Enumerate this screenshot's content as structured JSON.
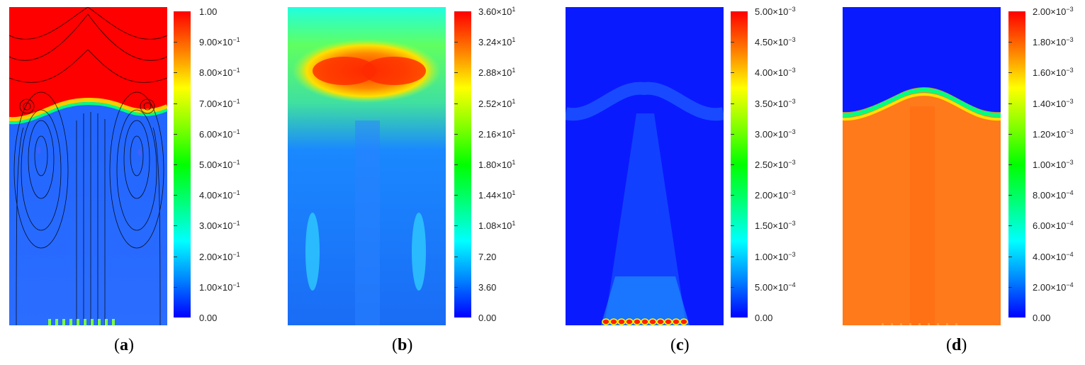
{
  "panels": [
    {
      "id": "a",
      "caption_letter": "a",
      "field_colors": {
        "upper": "#ff0000",
        "lower": "#1a5cff",
        "front": "#00e060"
      },
      "colorbar": [
        {
          "mant": "1.00",
          "exp": null
        },
        {
          "mant": "9.00×10",
          "exp": "−1"
        },
        {
          "mant": "8.00×10",
          "exp": "−1"
        },
        {
          "mant": "7.00×10",
          "exp": "−1"
        },
        {
          "mant": "6.00×10",
          "exp": "−1"
        },
        {
          "mant": "5.00×10",
          "exp": "−1"
        },
        {
          "mant": "4.00×10",
          "exp": "−1"
        },
        {
          "mant": "3.00×10",
          "exp": "−1"
        },
        {
          "mant": "2.00×10",
          "exp": "−1"
        },
        {
          "mant": "1.00×10",
          "exp": "−1"
        },
        {
          "mant": "0.00",
          "exp": null
        }
      ]
    },
    {
      "id": "b",
      "caption_letter": "b",
      "field_colors": {
        "background": "#1a6cf5",
        "hot": "#ff3300",
        "warm": "#80ff40"
      },
      "colorbar": [
        {
          "mant": "3.60×10",
          "exp": "1"
        },
        {
          "mant": "3.24×10",
          "exp": "1"
        },
        {
          "mant": "2.88×10",
          "exp": "1"
        },
        {
          "mant": "2.52×10",
          "exp": "1"
        },
        {
          "mant": "2.16×10",
          "exp": "1"
        },
        {
          "mant": "1.80×10",
          "exp": "1"
        },
        {
          "mant": "1.44×10",
          "exp": "1"
        },
        {
          "mant": "1.08×10",
          "exp": "1"
        },
        {
          "mant": "7.20",
          "exp": null
        },
        {
          "mant": "3.60",
          "exp": null
        },
        {
          "mant": "0.00",
          "exp": null
        }
      ]
    },
    {
      "id": "c",
      "caption_letter": "c",
      "field_colors": {
        "background": "#0a1aff",
        "plume": "#1a70ff",
        "source": "#ff2000"
      },
      "colorbar": [
        {
          "mant": "5.00×10",
          "exp": "−3"
        },
        {
          "mant": "4.50×10",
          "exp": "−3"
        },
        {
          "mant": "4.00×10",
          "exp": "−3"
        },
        {
          "mant": "3.50×10",
          "exp": "−3"
        },
        {
          "mant": "3.00×10",
          "exp": "−3"
        },
        {
          "mant": "2.50×10",
          "exp": "−3"
        },
        {
          "mant": "2.00×10",
          "exp": "−3"
        },
        {
          "mant": "1.50×10",
          "exp": "−3"
        },
        {
          "mant": "1.00×10",
          "exp": "−3"
        },
        {
          "mant": "5.00×10",
          "exp": "−4"
        },
        {
          "mant": "0.00",
          "exp": null
        }
      ]
    },
    {
      "id": "d",
      "caption_letter": "d",
      "field_colors": {
        "upper": "#0a1aff",
        "lower": "#ff7a1a",
        "front": "#00ff80"
      },
      "colorbar": [
        {
          "mant": "2.00×10",
          "exp": "−3"
        },
        {
          "mant": "1.80×10",
          "exp": "−3"
        },
        {
          "mant": "1.60×10",
          "exp": "−3"
        },
        {
          "mant": "1.40×10",
          "exp": "−3"
        },
        {
          "mant": "1.20×10",
          "exp": "−3"
        },
        {
          "mant": "1.00×10",
          "exp": "−3"
        },
        {
          "mant": "8.00×10",
          "exp": "−4"
        },
        {
          "mant": "6.00×10",
          "exp": "−4"
        },
        {
          "mant": "4.00×10",
          "exp": "−4"
        },
        {
          "mant": "2.00×10",
          "exp": "−4"
        },
        {
          "mant": "0.00",
          "exp": null
        }
      ]
    }
  ]
}
